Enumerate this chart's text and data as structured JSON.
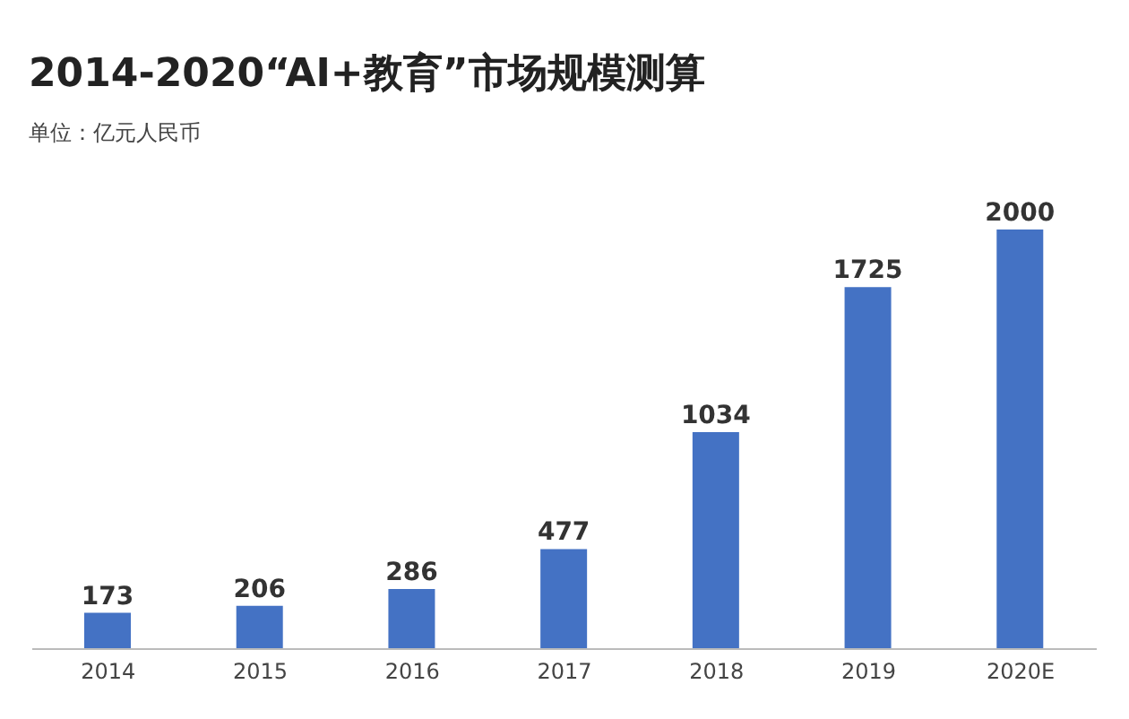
{
  "chart_data": {
    "type": "bar",
    "title": "2014-2020“AI+教育”市场规模测算",
    "subtitle": "单位：亿元人民币",
    "categories": [
      "2014",
      "2015",
      "2016",
      "2017",
      "2018",
      "2019",
      "2020E"
    ],
    "values": [
      173,
      206,
      286,
      477,
      1034,
      1725,
      2000
    ],
    "color": "#4472c4",
    "data_labels": true
  }
}
